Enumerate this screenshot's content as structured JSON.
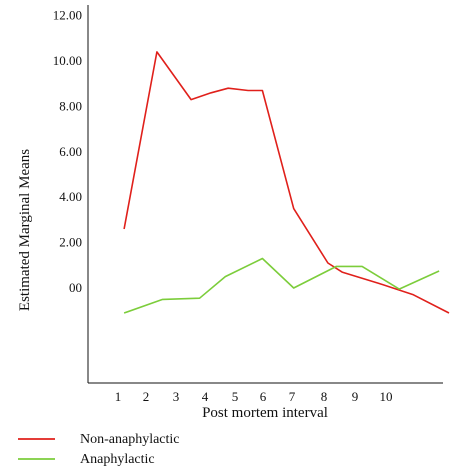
{
  "chart_data": {
    "type": "line",
    "title": "",
    "xlabel": "Post mortem interval",
    "ylabel": "Estimated Marginal Means",
    "x_tick_labels": [
      "1",
      "2",
      "3",
      "4",
      "5",
      "6",
      "7",
      "8",
      "9",
      "10"
    ],
    "y_tick_labels": [
      "12.00",
      "10.00",
      "8.00",
      "6.00",
      "4.00",
      "2.00",
      "00"
    ],
    "ylim": [
      -4,
      12
    ],
    "grid": false,
    "legend_position": "bottom-left",
    "series": [
      {
        "name": "Non-anaphylactic",
        "color": "#e0201b",
        "points": [
          [
            1.25,
            2.6
          ],
          [
            2.4,
            10.4
          ],
          [
            3.6,
            8.3
          ],
          [
            4.3,
            8.6
          ],
          [
            4.9,
            8.8
          ],
          [
            5.6,
            8.7
          ],
          [
            6.1,
            8.7
          ],
          [
            7.2,
            3.5
          ],
          [
            8.4,
            1.1
          ],
          [
            8.9,
            0.7
          ],
          [
            10.2,
            0.2
          ],
          [
            11.4,
            -0.3
          ],
          [
            12.65,
            -1.1
          ]
        ]
      },
      {
        "name": "Anaphylactic",
        "color": "#7ccd3b",
        "points": [
          [
            1.25,
            -1.1
          ],
          [
            2.6,
            -0.5
          ],
          [
            3.9,
            -0.45
          ],
          [
            4.8,
            0.5
          ],
          [
            6.1,
            1.3
          ],
          [
            7.2,
            0.0
          ],
          [
            8.7,
            0.95
          ],
          [
            9.6,
            0.95
          ],
          [
            10.9,
            -0.05
          ],
          [
            12.3,
            0.75
          ]
        ]
      }
    ]
  }
}
